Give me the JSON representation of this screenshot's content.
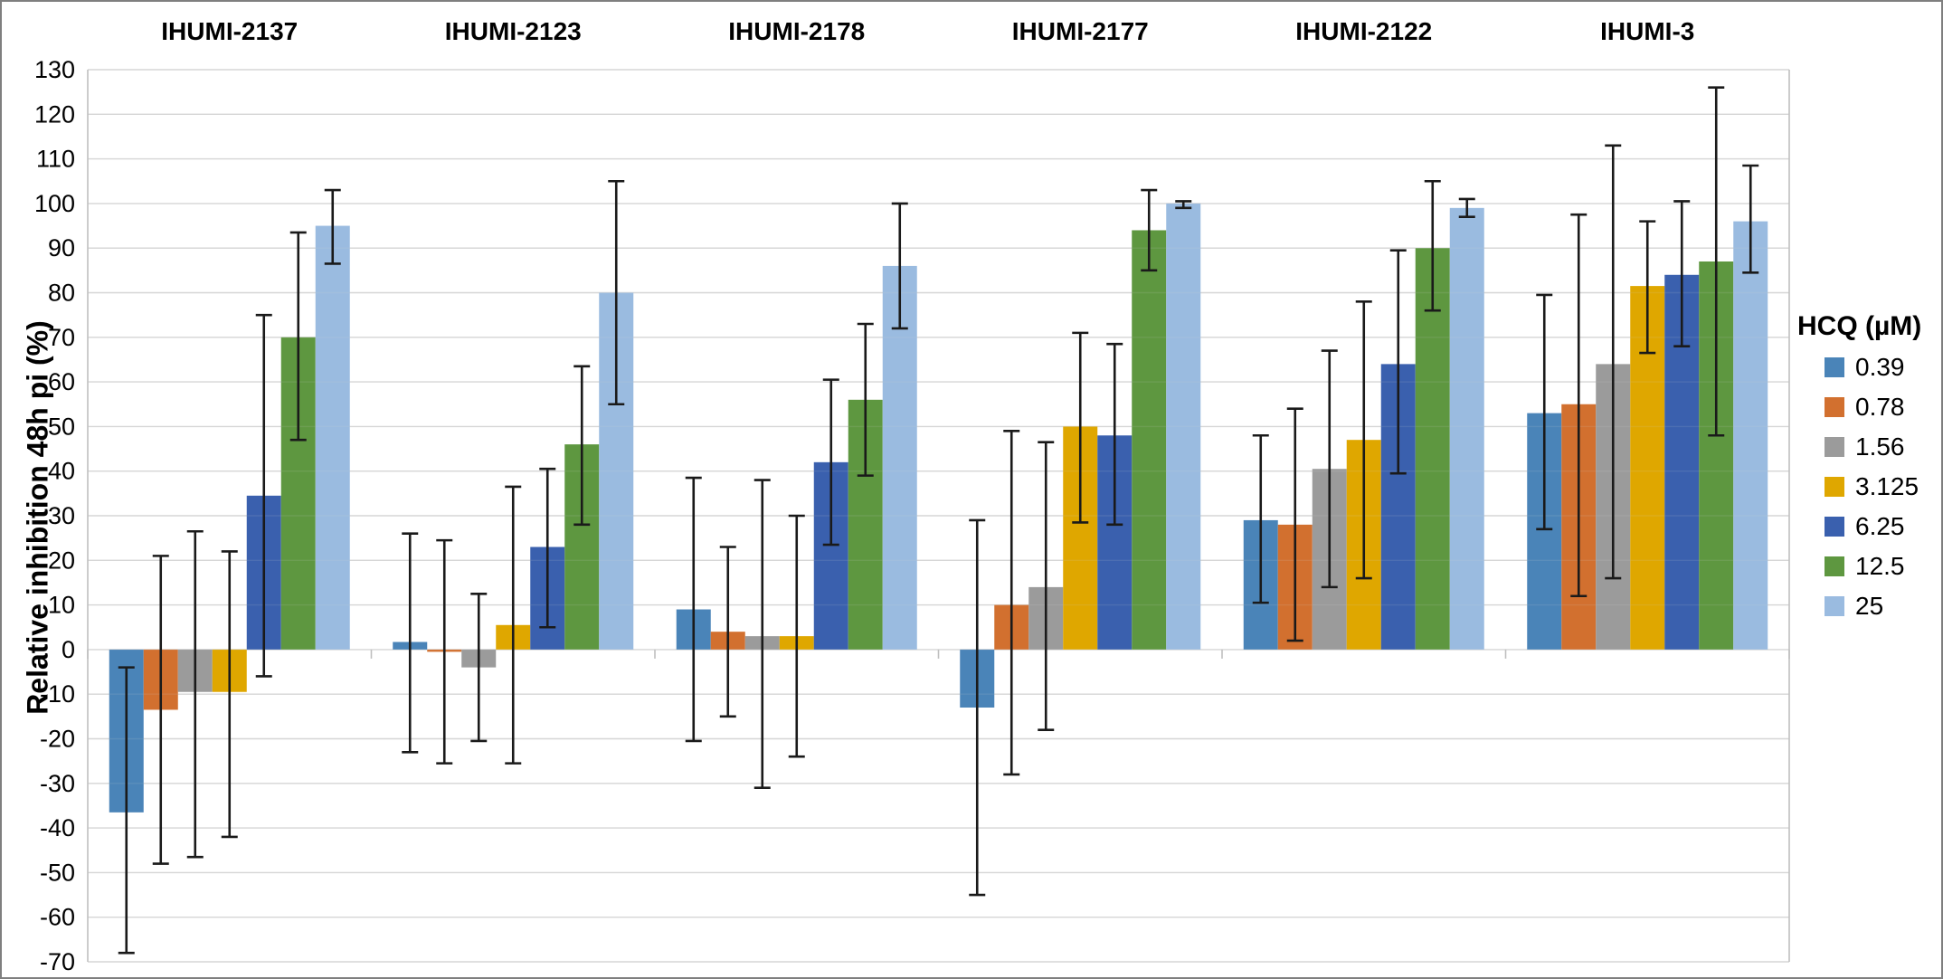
{
  "chart_data": {
    "type": "bar",
    "title": "",
    "ylabel": "Relative inhibition  48h pi (%)",
    "legend_title": "HCQ (µM)",
    "legend_position": "right",
    "grid": true,
    "ylim": [
      -70,
      130
    ],
    "ytick_step": 10,
    "yticks": [
      130,
      120,
      110,
      100,
      90,
      80,
      70,
      60,
      50,
      40,
      30,
      20,
      10,
      0,
      -10,
      -20,
      -30,
      -40,
      -50,
      -60,
      -70
    ],
    "categories": [
      "IHUMI-2137",
      "IHUMI-2123",
      "IHUMI-2178",
      "IHUMI-2177",
      "IHUMI-2122",
      "IHUMI-3"
    ],
    "series": [
      {
        "name": "0.39",
        "color": "#4A84B8",
        "values": [
          -36.5,
          1.7,
          9,
          -13,
          29,
          53
        ],
        "err_low": [
          -68,
          -23,
          -20.5,
          -55,
          10.5,
          27
        ],
        "err_high": [
          -4,
          26,
          38.5,
          29,
          48,
          79.5
        ]
      },
      {
        "name": "0.78",
        "color": "#D2702F",
        "values": [
          -13.5,
          -0.5,
          4,
          10,
          28,
          55
        ],
        "err_low": [
          -48,
          -25.5,
          -15,
          -28,
          2,
          12
        ],
        "err_high": [
          21,
          24.5,
          23,
          49,
          54,
          97.5
        ]
      },
      {
        "name": "1.56",
        "color": "#9B9B9B",
        "values": [
          -9.5,
          -4,
          3,
          14,
          40.5,
          64
        ],
        "err_low": [
          -46.5,
          -20.5,
          -31,
          -18,
          14,
          16
        ],
        "err_high": [
          26.5,
          12.5,
          38,
          46.5,
          67,
          113
        ]
      },
      {
        "name": "3.125",
        "color": "#DFA700",
        "values": [
          -9.5,
          5.5,
          3,
          50,
          47,
          81.5
        ],
        "err_low": [
          -42,
          -25.5,
          -24,
          28.5,
          16,
          66.5
        ],
        "err_high": [
          22,
          36.5,
          30,
          71,
          78,
          96
        ]
      },
      {
        "name": "6.25",
        "color": "#3A60AE",
        "values": [
          34.5,
          23,
          42,
          48,
          64,
          84
        ],
        "err_low": [
          -6,
          5,
          23.5,
          28,
          39.5,
          68
        ],
        "err_high": [
          75,
          40.5,
          60.5,
          68.5,
          89.5,
          100.5
        ]
      },
      {
        "name": "12.5",
        "color": "#5E9740",
        "values": [
          70,
          46,
          56,
          94,
          90,
          87
        ],
        "err_low": [
          47,
          28,
          39,
          85,
          76,
          48
        ],
        "err_high": [
          93.5,
          63.5,
          73,
          103,
          105,
          126
        ]
      },
      {
        "name": "25",
        "color": "#9ABBE0",
        "values": [
          95,
          80,
          86,
          100,
          99,
          96
        ],
        "err_low": [
          86.5,
          55,
          72,
          99,
          97,
          84.5
        ],
        "err_high": [
          103,
          105,
          100,
          100.5,
          101,
          108.5
        ]
      }
    ]
  },
  "style": {
    "background": "#FFFFFF",
    "grid_color": "#D6D6D6",
    "axis_color": "#BFBFBF",
    "error_bar_color": "#1A1A1A",
    "text_color": "#000000",
    "figure_border_color": "#7F7F7F"
  }
}
